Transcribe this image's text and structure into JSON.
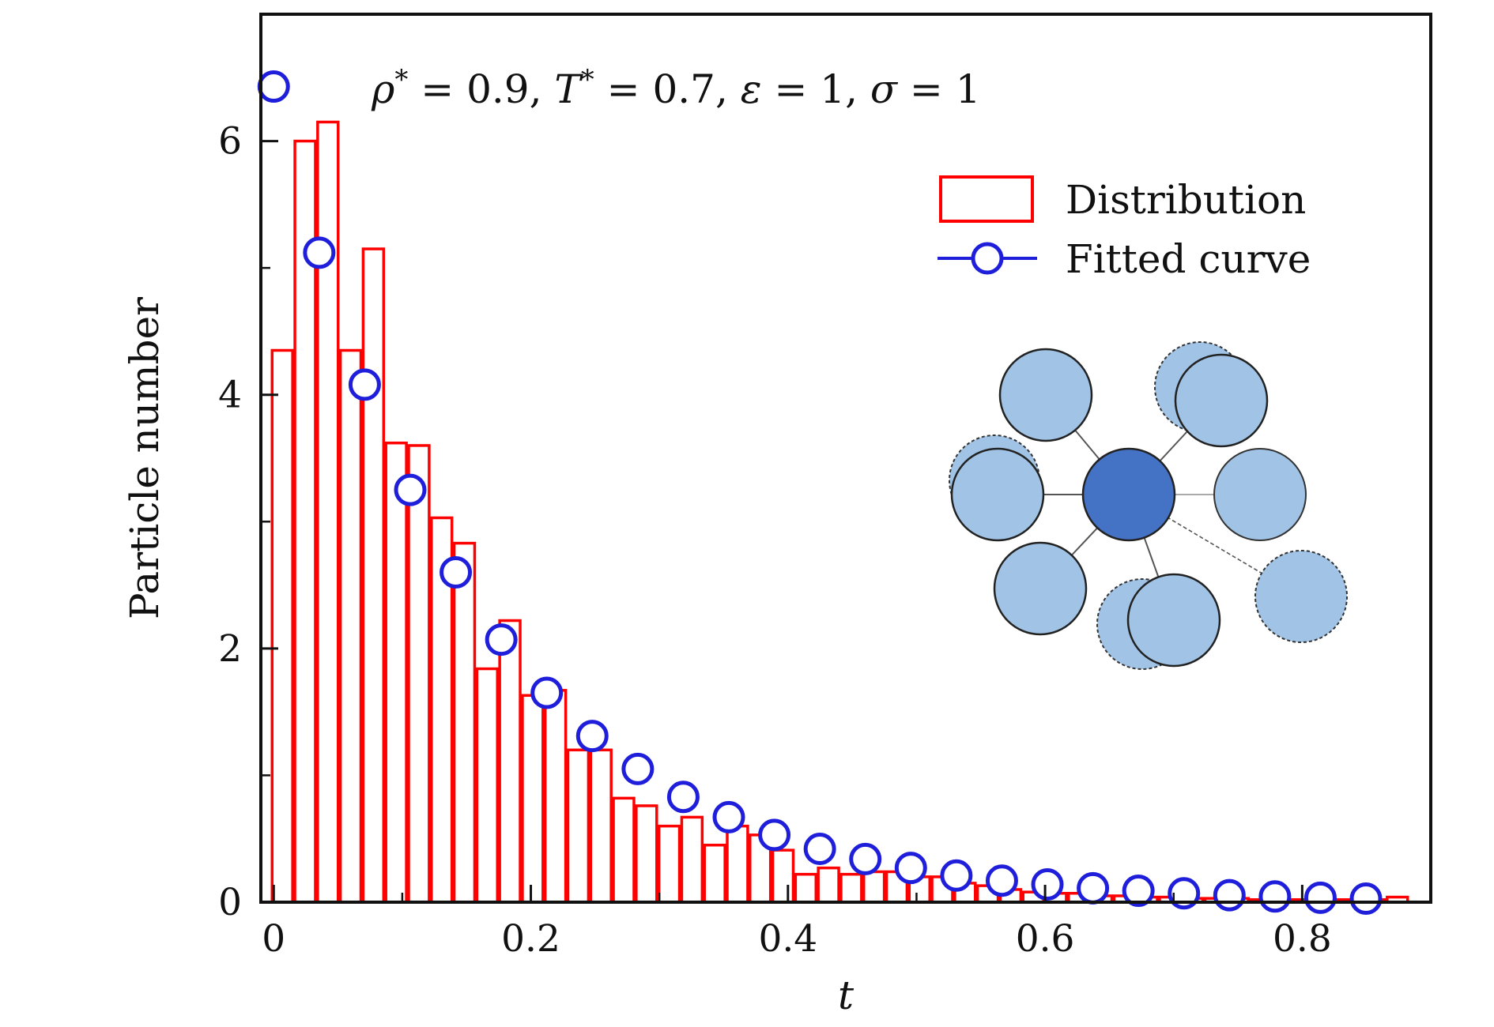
{
  "chart_data": {
    "type": "bar",
    "xlabel": "t",
    "ylabel": "Particle number",
    "xlim": [
      -0.01,
      0.9
    ],
    "ylim": [
      0,
      7
    ],
    "x_ticks": [
      0,
      0.2,
      0.4,
      0.6,
      0.8
    ],
    "x_tick_labels": [
      "0",
      "0.2",
      "0.4",
      "0.6",
      "0.8"
    ],
    "y_ticks": [
      0,
      2,
      4,
      6
    ],
    "y_tick_labels": [
      "0",
      "2",
      "4",
      "6"
    ],
    "annotation": "ρ* = 0.9,  T* = 0.7,  ε = 1,  σ = 1",
    "annotation_parts": [
      "ρ",
      "*",
      " = 0.9,  ",
      "T",
      "*",
      " = 0.7,  ",
      "ε",
      " = 1,  ",
      "σ",
      " = 1"
    ],
    "legend": [
      "Distribution",
      "Fitted curve"
    ],
    "legend_position": "top-right",
    "colors": {
      "distribution": "#ff0000",
      "fitted": "#1f1fdb",
      "axes": "#111111",
      "inset_center": "#4472c4",
      "inset_neighbor": "#a1c4e6"
    },
    "series": [
      {
        "name": "Distribution",
        "kind": "bar",
        "bin_width": 0.0177,
        "x": [
          0.0,
          0.0177,
          0.0354,
          0.0531,
          0.0708,
          0.0885,
          0.1062,
          0.1239,
          0.1416,
          0.1593,
          0.177,
          0.1947,
          0.2124,
          0.2301,
          0.2478,
          0.2655,
          0.2832,
          0.3009,
          0.3186,
          0.3363,
          0.354,
          0.3717,
          0.3894,
          0.4071,
          0.4248,
          0.4425,
          0.4602,
          0.4779,
          0.4956,
          0.5133,
          0.531,
          0.5487,
          0.5664,
          0.5841,
          0.6018,
          0.6195,
          0.6372,
          0.6549,
          0.6726,
          0.6903,
          0.708,
          0.7257,
          0.7434,
          0.7611,
          0.7788,
          0.7965,
          0.8142,
          0.8319,
          0.8496,
          0.8673
        ],
        "values": [
          4.35,
          6.0,
          6.15,
          4.35,
          5.15,
          3.62,
          3.6,
          3.03,
          2.83,
          1.84,
          2.22,
          1.63,
          1.67,
          1.2,
          1.2,
          0.82,
          0.76,
          0.6,
          0.67,
          0.45,
          0.6,
          0.53,
          0.41,
          0.22,
          0.27,
          0.22,
          0.24,
          0.24,
          0.2,
          0.2,
          0.15,
          0.13,
          0.1,
          0.08,
          0.07,
          0.07,
          0.05,
          0.05,
          0.04,
          0.04,
          0.03,
          0.03,
          0.03,
          0.02,
          0.02,
          0.02,
          0.02,
          0.02,
          0.02,
          0.04
        ]
      },
      {
        "name": "Fitted curve",
        "kind": "markers",
        "x": [
          0.0,
          0.0354,
          0.0708,
          0.1062,
          0.1416,
          0.177,
          0.2124,
          0.2478,
          0.2832,
          0.3186,
          0.354,
          0.3894,
          0.4248,
          0.4602,
          0.4956,
          0.531,
          0.5664,
          0.6018,
          0.6372,
          0.6726,
          0.708,
          0.7434,
          0.7788,
          0.8142,
          0.8496
        ],
        "values": [
          6.43,
          5.12,
          4.08,
          3.25,
          2.6,
          2.07,
          1.65,
          1.31,
          1.05,
          0.83,
          0.67,
          0.53,
          0.42,
          0.34,
          0.27,
          0.21,
          0.17,
          0.14,
          0.11,
          0.09,
          0.07,
          0.055,
          0.045,
          0.035,
          0.028
        ]
      }
    ]
  }
}
